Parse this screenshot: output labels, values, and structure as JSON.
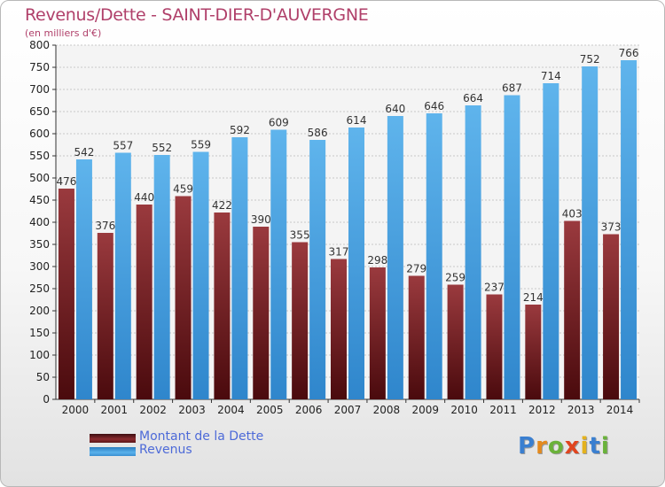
{
  "title": "Revenus/Dette - SAINT-DIER-D'AUVERGNE",
  "subtitle": "(en milliers d'€)",
  "chart_data": {
    "type": "bar",
    "categories": [
      "2000",
      "2001",
      "2002",
      "2003",
      "2004",
      "2005",
      "2006",
      "2007",
      "2008",
      "2009",
      "2010",
      "2011",
      "2012",
      "2013",
      "2014"
    ],
    "series": [
      {
        "name": "Montant de la Dette",
        "color": "#7a1f22",
        "values": [
          476,
          376,
          440,
          459,
          422,
          390,
          355,
          317,
          298,
          279,
          259,
          237,
          214,
          403,
          373
        ]
      },
      {
        "name": "Revenus",
        "color": "#4aa3e0",
        "values": [
          542,
          557,
          552,
          559,
          592,
          609,
          586,
          614,
          640,
          646,
          664,
          687,
          714,
          752,
          766
        ]
      }
    ],
    "ylim": [
      0,
      800
    ],
    "yticks": [
      0,
      50,
      100,
      150,
      200,
      250,
      300,
      350,
      400,
      450,
      500,
      550,
      600,
      650,
      700,
      750,
      800
    ],
    "grid": true,
    "legend_position": "bottom-left"
  },
  "legend": {
    "debt_label": "Montant de la Dette",
    "revenue_label": "Revenus"
  },
  "logo": {
    "letters": [
      {
        "char": "P",
        "color": "#3a7fd0"
      },
      {
        "char": "r",
        "color": "#e48a1e"
      },
      {
        "char": "o",
        "color": "#6ab23a"
      },
      {
        "char": "x",
        "color": "#e0451f"
      },
      {
        "char": "i",
        "color": "#e4b21e"
      },
      {
        "char": "t",
        "color": "#3a7fd0"
      },
      {
        "char": "i",
        "color": "#6ab23a"
      }
    ]
  }
}
